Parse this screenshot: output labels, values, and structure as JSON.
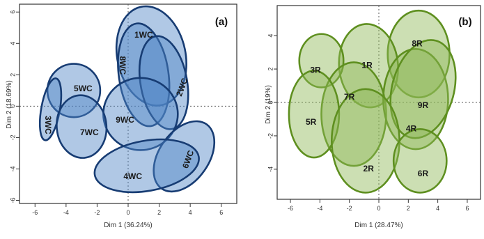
{
  "chart_data": [
    {
      "type": "scatter",
      "panel_label": "(a)",
      "title": "",
      "xlabel": "Dim 1 (36.24%)",
      "ylabel": "Dim 2 (18.69%)",
      "xlim": [
        -7,
        7
      ],
      "ylim": [
        -6.2,
        6.5
      ],
      "xticks": [
        "-6",
        "-4",
        "-2",
        "0",
        "2",
        "4",
        "6"
      ],
      "yticks": [
        "-6",
        "-4",
        "-2",
        "0",
        "2",
        "4",
        "6"
      ],
      "ytick_values": [
        -6,
        -4,
        -2,
        0,
        2,
        4,
        6
      ],
      "xtick_values": [
        -6,
        -4,
        -2,
        0,
        2,
        4,
        6
      ],
      "fill_color": "#4f86c6",
      "stroke_color": "#173c73",
      "points": [
        {
          "label": "1WC",
          "x": 1.0,
          "y": 4.5
        },
        {
          "label": "8WC",
          "x": -0.4,
          "y": 2.6
        },
        {
          "label": "2WC",
          "x": 3.5,
          "y": 1.2
        },
        {
          "label": "5WC",
          "x": -2.9,
          "y": 1.1
        },
        {
          "label": "9WC",
          "x": -0.2,
          "y": -0.9
        },
        {
          "label": "3WC",
          "x": -5.2,
          "y": -1.2
        },
        {
          "label": "7WC",
          "x": -2.5,
          "y": -1.7
        },
        {
          "label": "6WC",
          "x": 3.9,
          "y": -3.4
        },
        {
          "label": "4WC",
          "x": 0.3,
          "y": -4.5
        }
      ],
      "ellipses": [
        {
          "label": "1WC",
          "cx": 1.5,
          "cy": 3.2,
          "rx": 2.2,
          "ry": 3.2,
          "angle": -12
        },
        {
          "label": "8WC",
          "cx": 1.0,
          "cy": 2.0,
          "rx": 1.6,
          "ry": 3.3,
          "angle": -8
        },
        {
          "label": "2WC",
          "cx": 2.3,
          "cy": 1.5,
          "rx": 1.5,
          "ry": 3.0,
          "angle": -10
        },
        {
          "label": "9WC",
          "cx": 0.8,
          "cy": -0.5,
          "rx": 2.4,
          "ry": 2.3,
          "angle": 0
        },
        {
          "label": "5WC",
          "cx": -3.5,
          "cy": 1.0,
          "rx": 1.7,
          "ry": 1.7,
          "angle": 0
        },
        {
          "label": "3WC",
          "cx": -5.0,
          "cy": -0.2,
          "rx": 0.6,
          "ry": 2.0,
          "angle": 10
        },
        {
          "label": "7WC",
          "cx": -3.0,
          "cy": -1.3,
          "rx": 1.6,
          "ry": 2.0,
          "angle": -5
        },
        {
          "label": "6WC",
          "cx": 3.6,
          "cy": -3.2,
          "rx": 1.6,
          "ry": 2.5,
          "angle": 35
        },
        {
          "label": "4WC",
          "cx": 1.2,
          "cy": -3.8,
          "rx": 3.4,
          "ry": 1.6,
          "angle": -10
        }
      ]
    },
    {
      "type": "scatter",
      "panel_label": "(b)",
      "title": "",
      "xlabel": "Dim 1 (28.47%)",
      "ylabel": "Dim 2 (19%)",
      "xlim": [
        -6.9,
        6.9
      ],
      "ylim": [
        -5.8,
        5.8
      ],
      "xticks": [
        "-6",
        "-4",
        "-2",
        "0",
        "2",
        "4",
        "6"
      ],
      "yticks": [
        "-4",
        "-2",
        "0",
        "2",
        "4"
      ],
      "xtick_values": [
        -6,
        -4,
        -2,
        0,
        2,
        4,
        6
      ],
      "ytick_values": [
        -4,
        -2,
        0,
        2,
        4
      ],
      "fill_color": "#8fb956",
      "stroke_color": "#5e8f1f",
      "points": [
        {
          "label": "8R",
          "x": 2.6,
          "y": 3.5
        },
        {
          "label": "1R",
          "x": -0.8,
          "y": 2.2
        },
        {
          "label": "3R",
          "x": -4.3,
          "y": 1.9
        },
        {
          "label": "7R",
          "x": -2.0,
          "y": 0.3
        },
        {
          "label": "9R",
          "x": 3.0,
          "y": -0.2
        },
        {
          "label": "5R",
          "x": -4.6,
          "y": -1.2
        },
        {
          "label": "4R",
          "x": 2.2,
          "y": -1.6
        },
        {
          "label": "2R",
          "x": -0.7,
          "y": -4.0
        },
        {
          "label": "6R",
          "x": 3.0,
          "y": -4.3
        }
      ],
      "ellipses": [
        {
          "label": "8R",
          "cx": 2.7,
          "cy": 2.9,
          "rx": 2.1,
          "ry": 2.6,
          "angle": 0
        },
        {
          "label": "1R",
          "cx": -0.7,
          "cy": 2.2,
          "rx": 2.0,
          "ry": 2.5,
          "angle": -5
        },
        {
          "label": "3R",
          "cx": -3.9,
          "cy": 2.5,
          "rx": 1.5,
          "ry": 1.6,
          "angle": 0
        },
        {
          "label": "7R",
          "cx": -1.7,
          "cy": -0.7,
          "rx": 2.2,
          "ry": 3.1,
          "angle": 0
        },
        {
          "label": "9R",
          "cx": 2.5,
          "cy": 0.2,
          "rx": 2.2,
          "ry": 3.0,
          "angle": 0
        },
        {
          "label": "5R",
          "cx": -4.4,
          "cy": -0.7,
          "rx": 1.7,
          "ry": 2.6,
          "angle": 0
        },
        {
          "label": "4R",
          "cx": 3.0,
          "cy": 0.8,
          "rx": 2.1,
          "ry": 3.0,
          "angle": 15
        },
        {
          "label": "2R",
          "cx": -0.9,
          "cy": -2.3,
          "rx": 2.3,
          "ry": 3.1,
          "angle": 0
        },
        {
          "label": "6R",
          "cx": 2.8,
          "cy": -3.5,
          "rx": 1.8,
          "ry": 1.9,
          "angle": 0
        }
      ]
    }
  ]
}
